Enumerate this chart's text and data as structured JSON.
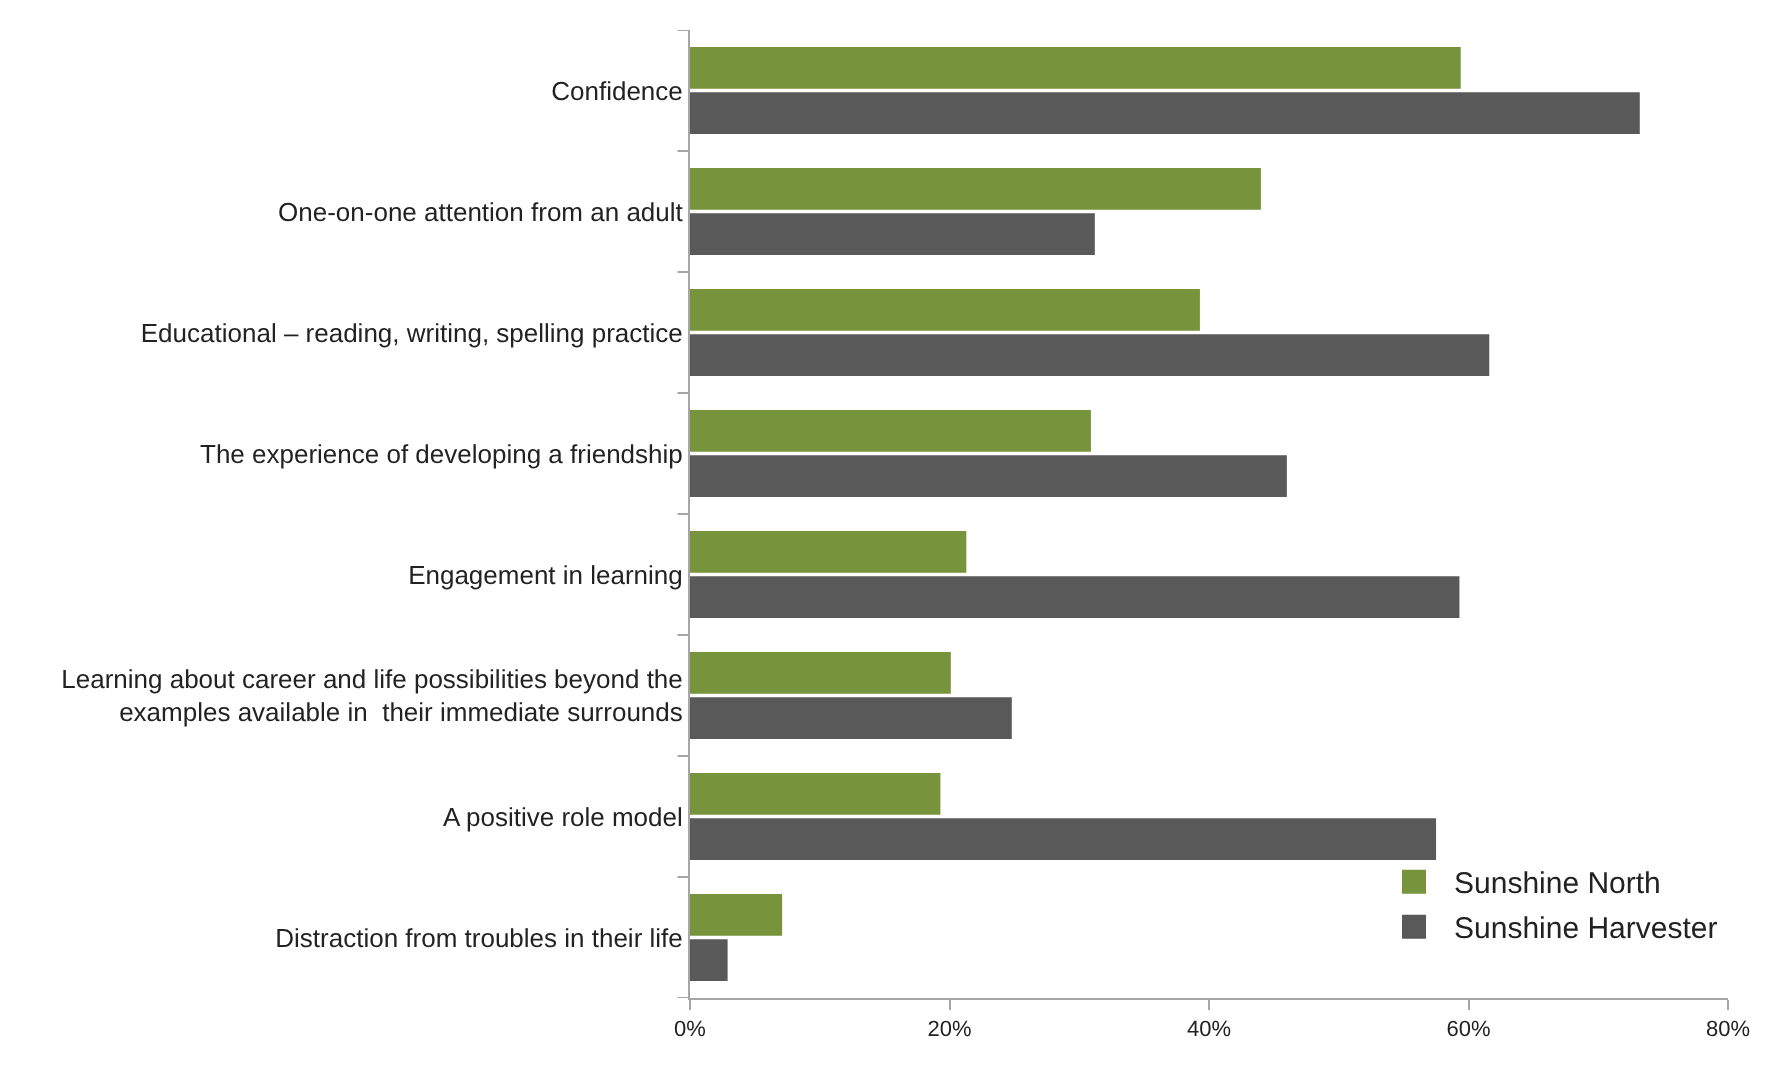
{
  "chart_data": {
    "type": "bar",
    "orientation": "horizontal",
    "categories": [
      "Confidence",
      "One-on-one attention from an adult",
      "Educational – reading, writing, spelling practice",
      "The experience of developing a friendship",
      "Engagement in learning",
      "Learning about career and life possibilities beyond the\nexamples available in  their immediate surrounds",
      "A positive role model",
      "Distraction from troubles in their life"
    ],
    "series": [
      {
        "name": "Sunshine North",
        "color": "#77933c",
        "values": [
          59.4,
          44.0,
          39.3,
          30.9,
          21.3,
          20.1,
          19.3,
          7.1
        ]
      },
      {
        "name": "Sunshine Harvester",
        "color": "#595959",
        "values": [
          73.2,
          31.2,
          61.6,
          46.0,
          59.3,
          24.8,
          57.5,
          2.9
        ]
      }
    ],
    "xlim": [
      0,
      80
    ],
    "xticks": [
      {
        "value": 0,
        "label": "0%"
      },
      {
        "value": 20,
        "label": "20%"
      },
      {
        "value": 40,
        "label": "40%"
      },
      {
        "value": 60,
        "label": "60%"
      },
      {
        "value": 80,
        "label": "80%"
      }
    ],
    "legend": "bottom right"
  }
}
